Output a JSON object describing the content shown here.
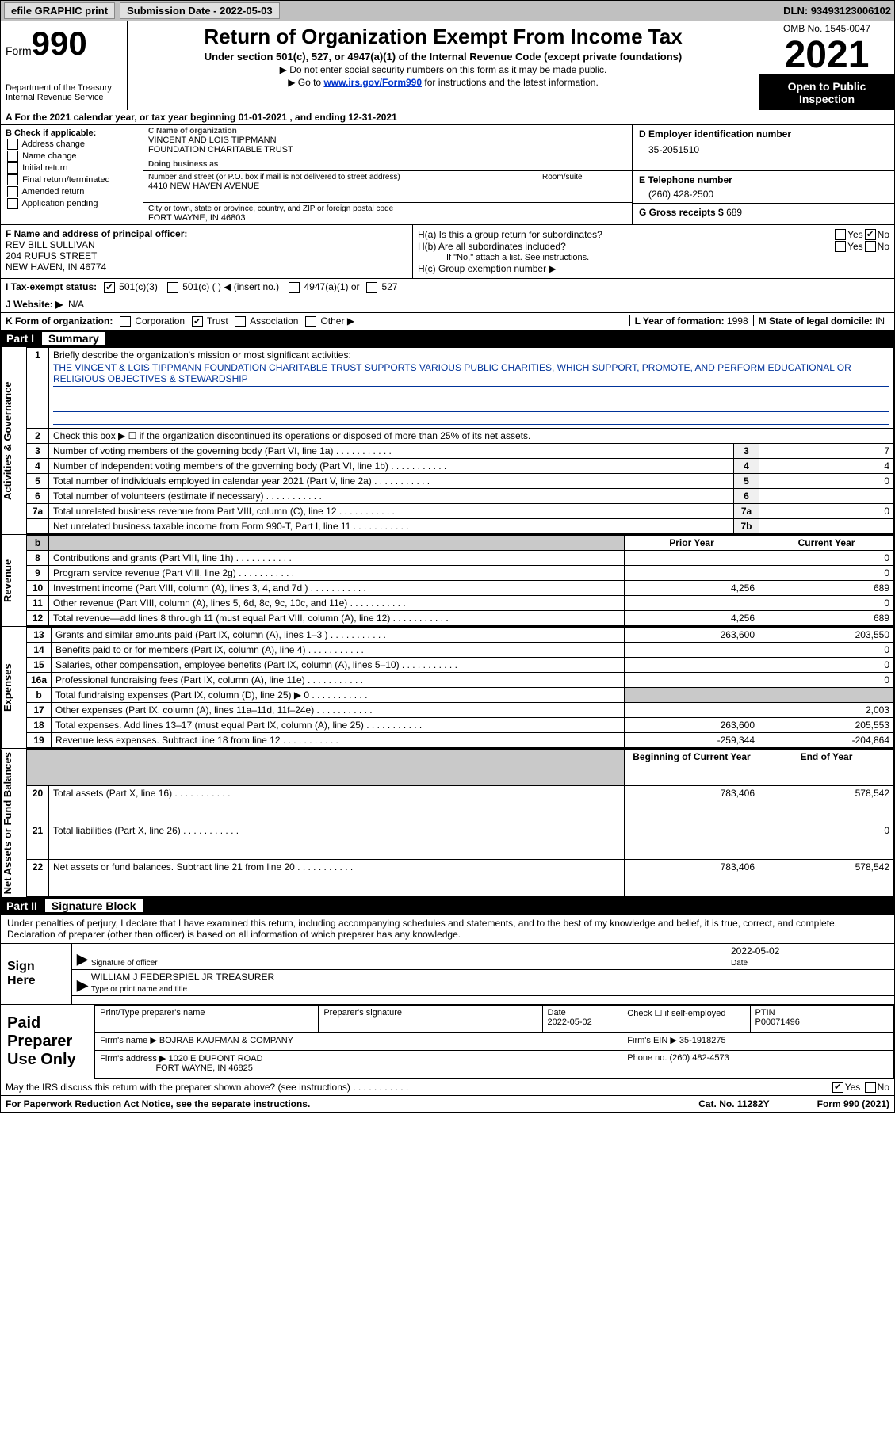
{
  "topbar": {
    "efile": "efile GRAPHIC print",
    "submission_label": "Submission Date - 2022-05-03",
    "dln_label": "DLN: 93493123006102"
  },
  "header": {
    "form_word": "Form",
    "form_num": "990",
    "dept": "Department of the Treasury\nInternal Revenue Service",
    "title": "Return of Organization Exempt From Income Tax",
    "sub": "Under section 501(c), 527, or 4947(a)(1) of the Internal Revenue Code (except private foundations)",
    "note1": "▶ Do not enter social security numbers on this form as it may be made public.",
    "note2_pre": "▶ Go to ",
    "note2_link": "www.irs.gov/Form990",
    "note2_post": " for instructions and the latest information.",
    "omb": "OMB No. 1545-0047",
    "year": "2021",
    "open": "Open to Public Inspection"
  },
  "rowA": "A For the 2021 calendar year, or tax year beginning 01-01-2021   , and ending 12-31-2021",
  "secB": {
    "cap": "B Check if applicable:",
    "opts": [
      "Address change",
      "Name change",
      "Initial return",
      "Final return/terminated",
      "Amended return",
      "Application pending"
    ]
  },
  "secC": {
    "cap_name": "C Name of organization",
    "org1": "VINCENT AND LOIS TIPPMANN",
    "org2": "FOUNDATION CHARITABLE TRUST",
    "dba_cap": "Doing business as",
    "addr_cap": "Number and street (or P.O. box if mail is not delivered to street address)",
    "addr": "4410 NEW HAVEN AVENUE",
    "room_cap": "Room/suite",
    "city_cap": "City or town, state or province, country, and ZIP or foreign postal code",
    "city": "FORT WAYNE, IN  46803"
  },
  "secD": {
    "cap": "D Employer identification number",
    "ein": "35-2051510"
  },
  "secE": {
    "cap": "E Telephone number",
    "tel": "(260) 428-2500"
  },
  "secG": {
    "cap": "G Gross receipts $",
    "val": "689"
  },
  "secF": {
    "cap": "F Name and address of principal officer:",
    "l1": "REV BILL SULLIVAN",
    "l2": "204 RUFUS STREET",
    "l3": "NEW HAVEN, IN  46774"
  },
  "secH": {
    "ha": "H(a)  Is this a group return for subordinates?",
    "hb": "H(b)  Are all subordinates included?",
    "hb_note": "If \"No,\" attach a list. See instructions.",
    "hc": "H(c)  Group exemption number ▶",
    "yes": "Yes",
    "no": "No"
  },
  "secI": {
    "cap": "I  Tax-exempt status:",
    "o1": "501(c)(3)",
    "o2": "501(c) (  ) ◀ (insert no.)",
    "o3": "4947(a)(1) or",
    "o4": "527"
  },
  "secJ": {
    "cap": "J  Website: ▶",
    "val": "N/A"
  },
  "secK": {
    "cap": "K Form of organization:",
    "o1": "Corporation",
    "o2": "Trust",
    "o3": "Association",
    "o4": "Other ▶",
    "l_cap": "L Year of formation:",
    "l_val": "1998",
    "m_cap": "M State of legal domicile:",
    "m_val": "IN"
  },
  "part1": {
    "pt": "Part I",
    "tt": "Summary"
  },
  "summary": {
    "brief_cap": "Briefly describe the organization's mission or most significant activities:",
    "mission": "THE VINCENT & LOIS TIPPMANN FOUNDATION CHARITABLE TRUST SUPPORTS VARIOUS PUBLIC CHARITIES, WHICH SUPPORT, PROMOTE, AND PERFORM EDUCATIONAL OR RELIGIOUS OBJECTIVES & STEWARDSHIP",
    "line2": "Check this box ▶ ☐  if the organization discontinued its operations or disposed of more than 25% of its net assets.",
    "vtab_ag": "Activities & Governance",
    "vtab_rev": "Revenue",
    "vtab_exp": "Expenses",
    "vtab_na": "Net Assets or Fund Balances",
    "rows_top": [
      {
        "n": "3",
        "t": "Number of voting members of the governing body (Part VI, line 1a)",
        "box": "3",
        "v": "7"
      },
      {
        "n": "4",
        "t": "Number of independent voting members of the governing body (Part VI, line 1b)",
        "box": "4",
        "v": "4"
      },
      {
        "n": "5",
        "t": "Total number of individuals employed in calendar year 2021 (Part V, line 2a)",
        "box": "5",
        "v": "0"
      },
      {
        "n": "6",
        "t": "Total number of volunteers (estimate if necessary)",
        "box": "6",
        "v": ""
      },
      {
        "n": "7a",
        "t": "Total unrelated business revenue from Part VIII, column (C), line 12",
        "box": "7a",
        "v": "0"
      },
      {
        "n": "",
        "t": "Net unrelated business taxable income from Form 990-T, Part I, line 11",
        "box": "7b",
        "v": ""
      }
    ],
    "col_py": "Prior Year",
    "col_cy": "Current Year",
    "rev_rows": [
      {
        "n": "8",
        "t": "Contributions and grants (Part VIII, line 1h)",
        "py": "",
        "cy": "0"
      },
      {
        "n": "9",
        "t": "Program service revenue (Part VIII, line 2g)",
        "py": "",
        "cy": "0"
      },
      {
        "n": "10",
        "t": "Investment income (Part VIII, column (A), lines 3, 4, and 7d )",
        "py": "4,256",
        "cy": "689"
      },
      {
        "n": "11",
        "t": "Other revenue (Part VIII, column (A), lines 5, 6d, 8c, 9c, 10c, and 11e)",
        "py": "",
        "cy": "0"
      },
      {
        "n": "12",
        "t": "Total revenue—add lines 8 through 11 (must equal Part VIII, column (A), line 12)",
        "py": "4,256",
        "cy": "689"
      }
    ],
    "exp_rows": [
      {
        "n": "13",
        "t": "Grants and similar amounts paid (Part IX, column (A), lines 1–3 )",
        "py": "263,600",
        "cy": "203,550"
      },
      {
        "n": "14",
        "t": "Benefits paid to or for members (Part IX, column (A), line 4)",
        "py": "",
        "cy": "0"
      },
      {
        "n": "15",
        "t": "Salaries, other compensation, employee benefits (Part IX, column (A), lines 5–10)",
        "py": "",
        "cy": "0"
      },
      {
        "n": "16a",
        "t": "Professional fundraising fees (Part IX, column (A), line 11e)",
        "py": "",
        "cy": "0"
      },
      {
        "n": "b",
        "t": "Total fundraising expenses (Part IX, column (D), line 25) ▶ 0",
        "py": "grey",
        "cy": "grey"
      },
      {
        "n": "17",
        "t": "Other expenses (Part IX, column (A), lines 11a–11d, 11f–24e)",
        "py": "",
        "cy": "2,003"
      },
      {
        "n": "18",
        "t": "Total expenses. Add lines 13–17 (must equal Part IX, column (A), line 25)",
        "py": "263,600",
        "cy": "205,553"
      },
      {
        "n": "19",
        "t": "Revenue less expenses. Subtract line 18 from line 12",
        "py": "-259,344",
        "cy": "-204,864"
      }
    ],
    "col_boy": "Beginning of Current Year",
    "col_eoy": "End of Year",
    "na_rows": [
      {
        "n": "20",
        "t": "Total assets (Part X, line 16)",
        "py": "783,406",
        "cy": "578,542"
      },
      {
        "n": "21",
        "t": "Total liabilities (Part X, line 26)",
        "py": "",
        "cy": "0"
      },
      {
        "n": "22",
        "t": "Net assets or fund balances. Subtract line 21 from line 20",
        "py": "783,406",
        "cy": "578,542"
      }
    ]
  },
  "part2": {
    "pt": "Part II",
    "tt": "Signature Block"
  },
  "sign": {
    "decl": "Under penalties of perjury, I declare that I have examined this return, including accompanying schedules and statements, and to the best of my knowledge and belief, it is true, correct, and complete. Declaration of preparer (other than officer) is based on all information of which preparer has any knowledge.",
    "sign_here": "Sign Here",
    "sig_cap": "Signature of officer",
    "date_val": "2022-05-02",
    "date_cap": "Date",
    "name": "WILLIAM J FEDERSPIEL JR  TREASURER",
    "name_cap": "Type or print name and title",
    "paid": "Paid Preparer Use Only",
    "pp_name_cap": "Print/Type preparer's name",
    "pp_sig_cap": "Preparer's signature",
    "pp_date_cap": "Date",
    "pp_date": "2022-05-02",
    "pp_chk": "Check ☐ if self-employed",
    "ptin_cap": "PTIN",
    "ptin": "P00071496",
    "firm_cap": "Firm's name    ▶",
    "firm": "BOJRAB KAUFMAN & COMPANY",
    "fein_cap": "Firm's EIN ▶",
    "fein": "35-1918275",
    "addr_cap": "Firm's address ▶",
    "addr1": "1020 E DUPONT ROAD",
    "addr2": "FORT WAYNE, IN  46825",
    "phone_cap": "Phone no.",
    "phone": "(260) 482-4573",
    "may": "May the IRS discuss this return with the preparer shown above? (see instructions)"
  },
  "footer": {
    "pra": "For Paperwork Reduction Act Notice, see the separate instructions.",
    "cat": "Cat. No. 11282Y",
    "form": "Form 990 (2021)"
  }
}
